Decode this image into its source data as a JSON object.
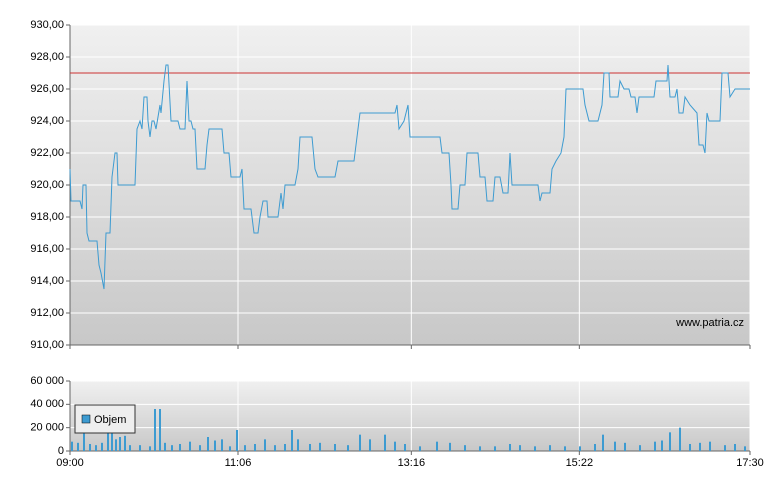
{
  "chart_data": [
    {
      "type": "line",
      "xlim": [
        540,
        1050
      ],
      "ylim": [
        910,
        930
      ],
      "yticks": [
        {
          "value": 910,
          "label": "910,00"
        },
        {
          "value": 912,
          "label": "912,00"
        },
        {
          "value": 914,
          "label": "914,00"
        },
        {
          "value": 916,
          "label": "916,00"
        },
        {
          "value": 918,
          "label": "918,00"
        },
        {
          "value": 920,
          "label": "920,00"
        },
        {
          "value": 922,
          "label": "922,00"
        },
        {
          "value": 924,
          "label": "924,00"
        },
        {
          "value": 926,
          "label": "926,00"
        },
        {
          "value": 928,
          "label": "928,00"
        },
        {
          "value": 930,
          "label": "930,00"
        }
      ],
      "grid": true,
      "reference_line": {
        "value": 927,
        "color": "#cc3333"
      },
      "watermark": "www.patria.cz",
      "x": [
        540,
        540.75,
        547.5,
        549,
        549.75,
        552,
        552.75,
        554.25,
        560.25,
        561.75,
        563.25,
        565.5,
        567,
        570,
        571.5,
        573.75,
        575.25,
        576,
        588.75,
        590.25,
        592.5,
        594,
        595.5,
        597.75,
        598.5,
        600,
        601.5,
        603,
        604.5,
        607.5,
        608.25,
        610.5,
        612,
        613.5,
        615.75,
        621,
        622.5,
        626.25,
        627.75,
        629.25,
        630.75,
        632.25,
        633.75,
        635.25,
        641.25,
        642.75,
        644.25,
        654,
        655.5,
        659.25,
        660.75,
        667.5,
        669,
        670.5,
        675.75,
        678,
        681,
        682.5,
        684.75,
        687.75,
        688.5,
        696,
        698.25,
        699.75,
        701.25,
        708.75,
        711,
        712.5,
        721.5,
        723.75,
        726,
        738.75,
        741,
        753,
        755.25,
        757.5,
        783.75,
        785.25,
        786.75,
        790.5,
        793.5,
        795,
        817.5,
        819,
        824.25,
        825.75,
        826.5,
        831,
        832.5,
        836.25,
        837.75,
        846,
        847.5,
        851.25,
        852.75,
        857.25,
        858.75,
        862.5,
        864.75,
        868.5,
        870,
        871.5,
        877.5,
        891,
        892.5,
        894,
        900,
        901.5,
        904.5,
        908.25,
        910.5,
        912,
        924.75,
        926.25,
        929.25,
        936,
        939,
        940.5,
        944.25,
        945,
        951,
        952.5,
        955.5,
        959.25,
        960.75,
        963.75,
        965.25,
        966.75,
        978,
        979.5,
        987.75,
        988.5,
        990,
        993.75,
        995.25,
        996.75,
        999.75,
        1001.25,
        1005,
        1010.25,
        1011.75,
        1014.75,
        1016.25,
        1017.75,
        1019.25,
        1027.5,
        1029,
        1033.5,
        1035,
        1038.75,
        1050
      ],
      "series": [
        {
          "color": "#3d9bd1",
          "values": [
            921,
            919,
            919,
            918.5,
            920,
            920,
            917,
            916.5,
            916.5,
            915,
            914.5,
            913.5,
            917,
            917,
            920.5,
            922,
            922,
            920,
            920,
            923.5,
            924,
            923.5,
            925.5,
            925.5,
            924,
            923,
            924,
            924,
            923.5,
            925,
            924.5,
            926.5,
            927.5,
            927.5,
            924,
            924,
            923.5,
            923.5,
            926.5,
            924,
            924,
            923.5,
            923.5,
            921,
            921,
            922.5,
            923.5,
            923.5,
            922,
            922,
            920.5,
            920.5,
            921,
            918.5,
            918.5,
            917,
            917,
            918,
            919,
            919,
            918,
            918,
            919.5,
            918.5,
            920,
            920,
            921,
            923,
            923,
            921,
            920.5,
            920.5,
            921.5,
            921.5,
            923,
            924.5,
            924.5,
            925,
            923.5,
            924,
            925,
            923,
            923,
            922,
            922,
            920,
            918.5,
            918.5,
            920,
            920,
            922,
            922,
            920.5,
            920.5,
            919,
            919,
            920.5,
            920.5,
            919.5,
            919.5,
            922,
            920,
            920,
            920,
            919,
            919.5,
            919.5,
            921,
            921.5,
            922,
            923,
            926,
            926,
            925,
            924,
            924,
            925,
            927,
            927,
            925.5,
            925.5,
            926.5,
            926,
            926,
            925.5,
            925.5,
            924.5,
            925.5,
            925.5,
            926.5,
            926.5,
            927.5,
            925.5,
            925.5,
            926,
            924.5,
            924.5,
            925.5,
            925,
            924.5,
            922.5,
            922.5,
            922,
            924.5,
            924,
            924,
            927,
            927,
            925.5,
            926,
            926
          ]
        }
      ]
    },
    {
      "type": "bar",
      "xlim": [
        540,
        1050
      ],
      "xticks": [
        {
          "value": 540,
          "label": "09:00"
        },
        {
          "value": 666,
          "label": "11:06"
        },
        {
          "value": 796,
          "label": "13:16"
        },
        {
          "value": 922,
          "label": "15:22"
        },
        {
          "value": 1050,
          "label": "17:30"
        }
      ],
      "ylim": [
        0,
        60000
      ],
      "yticks": [
        0,
        {
          "value": 20000,
          "label": "20 000"
        },
        {
          "value": 40000,
          "label": "40 000"
        },
        {
          "value": 60000,
          "label": "60 000"
        }
      ],
      "grid": true,
      "x": [
        541.5,
        546,
        550.5,
        555,
        559.5,
        564,
        568.5,
        571.5,
        574.5,
        577.5,
        581.25,
        585,
        592.5,
        600,
        603.75,
        607.5,
        611.25,
        616.5,
        622.5,
        630,
        637.5,
        643.5,
        648.75,
        654,
        660,
        665.25,
        671.25,
        678.75,
        686.25,
        693.75,
        701.25,
        706.5,
        711,
        720,
        727.5,
        738.75,
        748.5,
        757.5,
        765,
        776.25,
        783.75,
        791.25,
        802.5,
        815.25,
        825,
        836.25,
        847.5,
        858.75,
        870,
        877.5,
        888.75,
        900,
        911.25,
        922.5,
        933.75,
        939.75,
        948.75,
        956.25,
        967.5,
        978.75,
        984,
        990,
        997.5,
        1005,
        1012.5,
        1020,
        1031.25,
        1038.75,
        1046.25
      ],
      "series": [
        {
          "name": "Objem",
          "color": "#3d9bd1",
          "values": [
            8000,
            7000,
            20000,
            6000,
            5000,
            7000,
            15000,
            20000,
            10000,
            12000,
            13000,
            5000,
            5000,
            4000,
            36000,
            36000,
            7000,
            5000,
            6000,
            8000,
            5000,
            12000,
            9000,
            10000,
            4000,
            18000,
            5000,
            6000,
            10000,
            5000,
            6000,
            18000,
            10000,
            6000,
            7000,
            6000,
            5000,
            14000,
            10000,
            14000,
            8000,
            6000,
            4000,
            8000,
            7000,
            5000,
            4000,
            4000,
            6000,
            5000,
            4000,
            5000,
            4000,
            4000,
            6000,
            14000,
            8000,
            7000,
            5000,
            8000,
            9000,
            16000,
            20000,
            6000,
            7000,
            8000,
            5000,
            6000,
            4000
          ]
        }
      ]
    }
  ]
}
